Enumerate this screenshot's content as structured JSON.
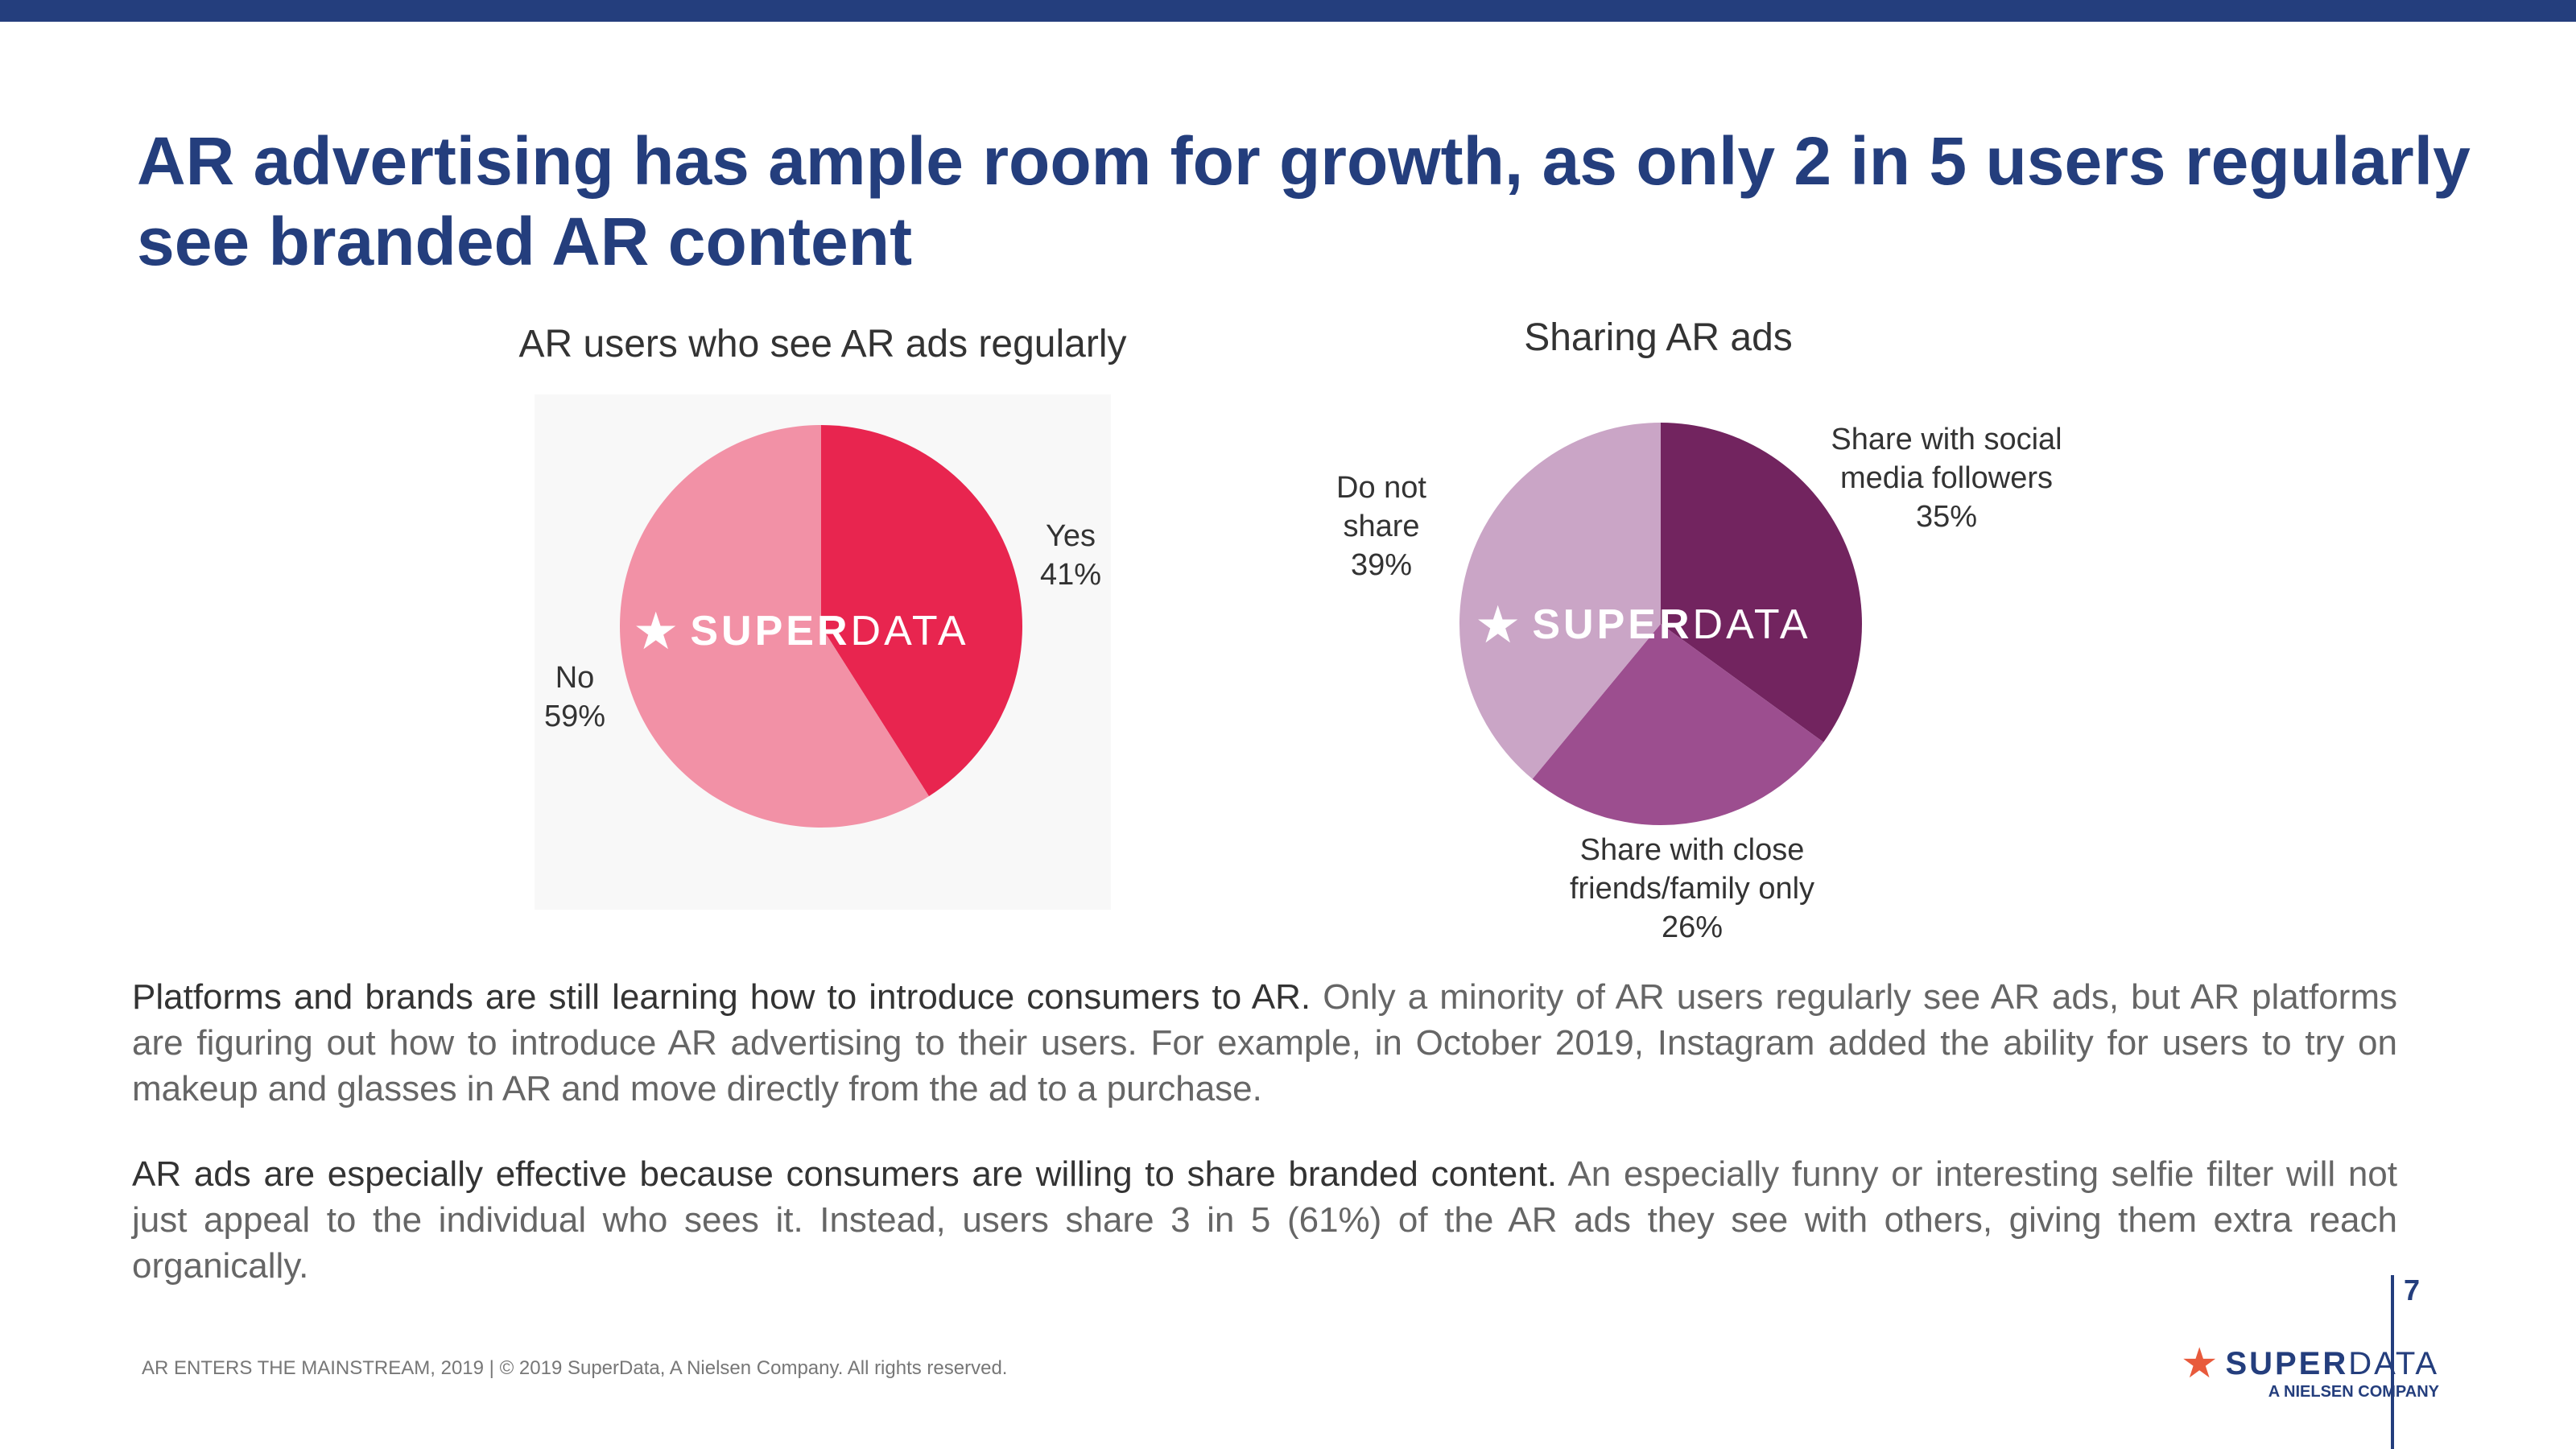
{
  "header": {
    "title": "AR advertising has ample room for growth, as only 2 in 5 users regularly see branded AR content"
  },
  "watermark": {
    "star": "★",
    "word_bold": "SUPER",
    "word_light": "DATA"
  },
  "chart_data": [
    {
      "type": "pie",
      "title": "AR users who see AR ads regularly",
      "slices": [
        {
          "label": "Yes",
          "value": 41,
          "display": "41%",
          "color": "#e8254f"
        },
        {
          "label": "No",
          "value": 59,
          "display": "59%",
          "color": "#f291a6"
        }
      ]
    },
    {
      "type": "pie",
      "title": "Sharing AR ads",
      "slices": [
        {
          "label": "Share with social media followers",
          "value": 35,
          "display": "35%",
          "color": "#72245f"
        },
        {
          "label": "Share with close friends/family only",
          "value": 26,
          "display": "26%",
          "color": "#9c4e8f"
        },
        {
          "label": "Do not share",
          "value": 39,
          "display": "39%",
          "color": "#caa5c6"
        }
      ]
    }
  ],
  "chart1_labels": {
    "yes": {
      "line1": "Yes",
      "line2": "41%"
    },
    "no": {
      "line1": "No",
      "line2": "59%"
    }
  },
  "chart2_labels": {
    "social": {
      "line1": "Share with social",
      "line2": "media followers",
      "line3": "35%"
    },
    "friends": {
      "line1": "Share with close",
      "line2": "friends/family only",
      "line3": "26%"
    },
    "none": {
      "line1": "Do not",
      "line2": "share",
      "line3": "39%"
    }
  },
  "body": {
    "para1_lead": "Platforms and brands are still learning how to introduce consumers to AR.",
    "para1_rest": "Only a minority of AR users regularly see AR ads, but AR platforms are figuring out how to introduce AR advertising to their users. For example, in October 2019, Instagram added the ability for users to try on makeup and glasses in AR and move directly from the ad to a purchase.",
    "para2_lead": "AR ads are especially effective because consumers are willing to share branded content.",
    "para2_rest": "An especially funny or interesting selfie filter will not just appeal to the individual who sees it. Instead, users share 3 in 5 (61%) of the AR ads they see with others, giving them extra reach organically."
  },
  "footer": {
    "text": "AR ENTERS THE MAINSTREAM, 2019 |  © 2019 SuperData, A Nielsen Company. All rights reserved.",
    "page_number": "7",
    "brand_bold": "SUPER",
    "brand_light": "DATA",
    "brand_sub": "A NIELSEN COMPANY",
    "brand_star": "★"
  }
}
